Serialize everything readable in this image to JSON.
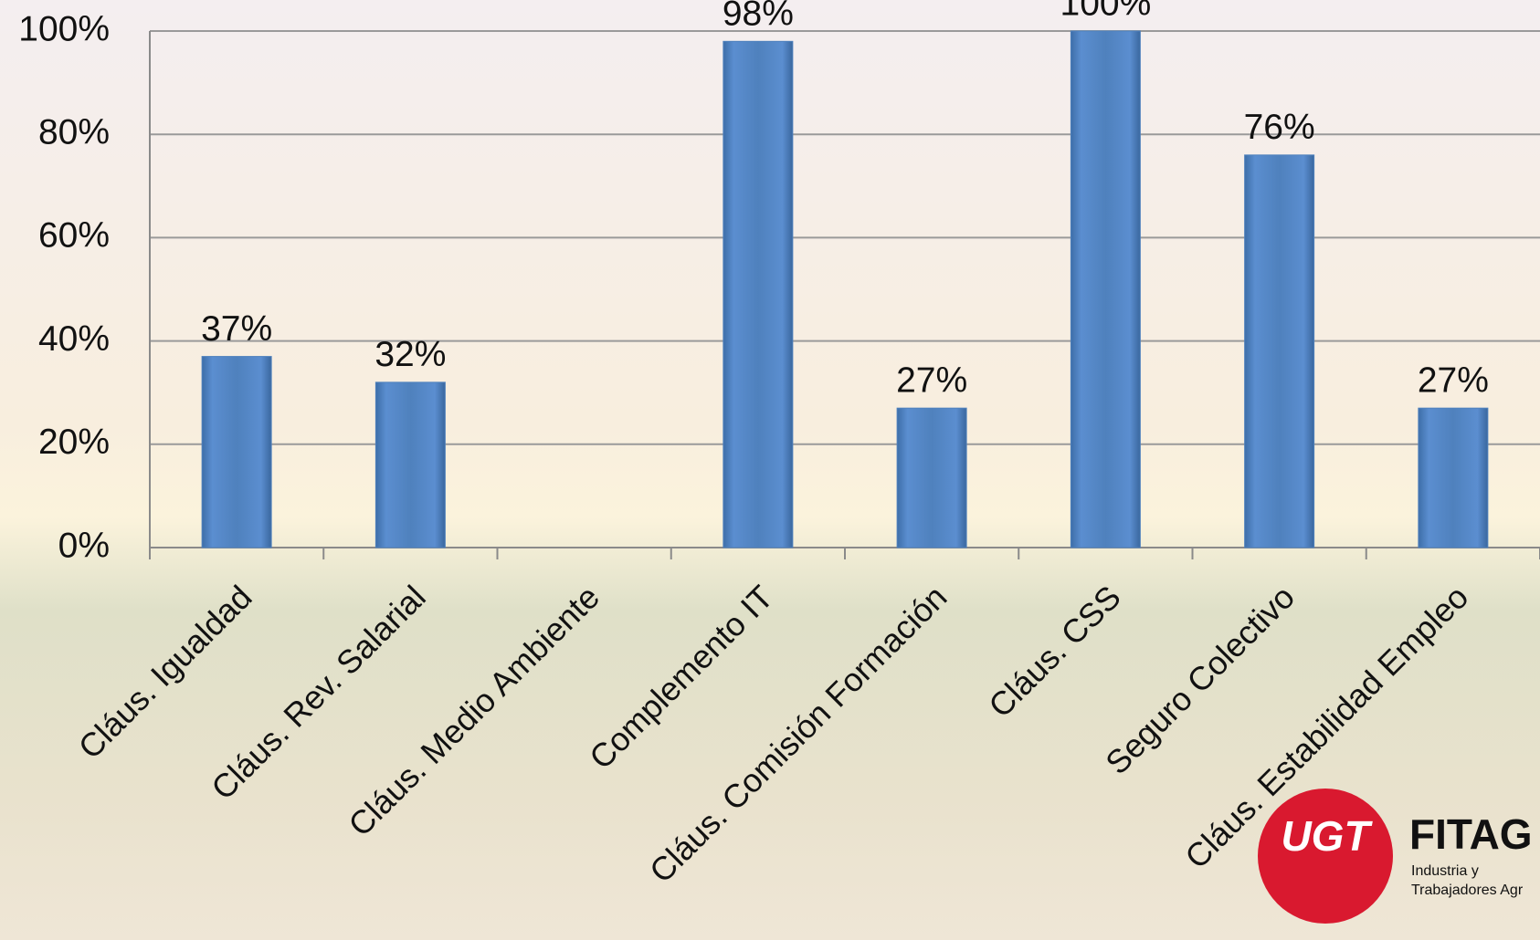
{
  "chart_data": {
    "type": "bar",
    "categories": [
      "Cláus. Igualdad",
      "Cláus. Rev. Salarial",
      "Cláus. Medio Ambiente",
      "Complemento IT",
      "Cláus. Comisión Formación",
      "Cláus. CSS",
      "Seguro Colectivo",
      "Cláus. Estabilidad Empleo"
    ],
    "values": [
      37,
      32,
      null,
      98,
      27,
      100,
      76,
      27
    ],
    "value_labels": [
      "37%",
      "32%",
      null,
      "98%",
      "27%",
      "100%",
      "76%",
      "27%"
    ],
    "color": "#4f81bd",
    "ylim": [
      0,
      100
    ],
    "yticks": [
      {
        "value": 0,
        "label": "0%"
      },
      {
        "value": 20,
        "label": "20%"
      },
      {
        "value": 40,
        "label": "40%"
      },
      {
        "value": 60,
        "label": "60%"
      },
      {
        "value": 80,
        "label": "80%"
      },
      {
        "value": 100,
        "label": "100%"
      }
    ],
    "grid": true
  },
  "logo": {
    "mark": "UGT",
    "name": "FITAG",
    "line1": "Industria y",
    "line2": "Trabajadores Agr"
  }
}
